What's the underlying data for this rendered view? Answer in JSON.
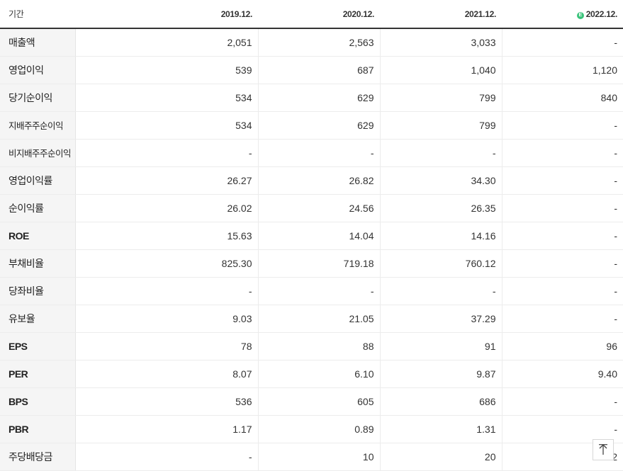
{
  "table": {
    "header_label": "기간",
    "periods": [
      "2019.12.",
      "2020.12.",
      "2021.12.",
      "2022.12."
    ],
    "estimate_badge": "E",
    "rows": [
      {
        "label": "매출액",
        "values": [
          "2,051",
          "2,563",
          "3,033",
          "-"
        ]
      },
      {
        "label": "영업이익",
        "values": [
          "539",
          "687",
          "1,040",
          "1,120"
        ]
      },
      {
        "label": "당기순이익",
        "values": [
          "534",
          "629",
          "799",
          "840"
        ]
      },
      {
        "label": "지배주주순이익",
        "values": [
          "534",
          "629",
          "799",
          "-"
        ]
      },
      {
        "label": "비지배주주순이익",
        "values": [
          "-",
          "-",
          "-",
          "-"
        ]
      },
      {
        "label": "영업이익률",
        "values": [
          "26.27",
          "26.82",
          "34.30",
          "-"
        ]
      },
      {
        "label": "순이익률",
        "values": [
          "26.02",
          "24.56",
          "26.35",
          "-"
        ]
      },
      {
        "label": "ROE",
        "values": [
          "15.63",
          "14.04",
          "14.16",
          "-"
        ]
      },
      {
        "label": "부채비율",
        "values": [
          "825.30",
          "719.18",
          "760.12",
          "-"
        ]
      },
      {
        "label": "당좌비율",
        "values": [
          "-",
          "-",
          "-",
          "-"
        ]
      },
      {
        "label": "유보율",
        "values": [
          "9.03",
          "21.05",
          "37.29",
          "-"
        ]
      },
      {
        "label": "EPS",
        "values": [
          "78",
          "88",
          "91",
          "96"
        ]
      },
      {
        "label": "PER",
        "values": [
          "8.07",
          "6.10",
          "9.87",
          "9.40"
        ]
      },
      {
        "label": "BPS",
        "values": [
          "536",
          "605",
          "686",
          "-"
        ]
      },
      {
        "label": "PBR",
        "values": [
          "1.17",
          "0.89",
          "1.31",
          "-"
        ]
      },
      {
        "label": "주당배당금",
        "values": [
          "-",
          "10",
          "20",
          "2"
        ]
      }
    ]
  },
  "scroll_top_button": {
    "icon": "arrow-up-icon"
  }
}
